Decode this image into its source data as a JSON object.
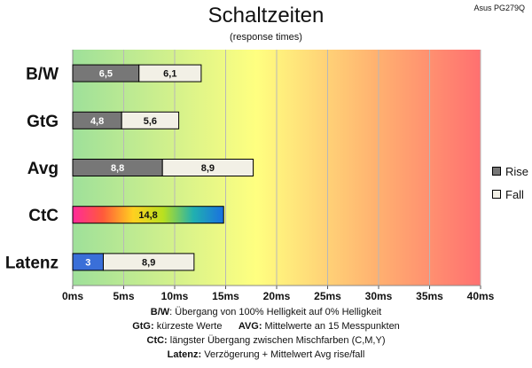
{
  "title": "Schaltzeiten",
  "subtitle": "(response times)",
  "corner_label": "Asus PG279Q",
  "legend": [
    {
      "label": "Rise",
      "color": "#777777"
    },
    {
      "label": "Fall",
      "color": "#f2f0e6"
    }
  ],
  "notes": [
    {
      "key": "B/W",
      "text": ":  Übergang von 100% Helligkeit auf 0% Helligkeit"
    },
    {
      "key": "GtG:",
      "text": " kürzeste  Werte",
      "key2": "AVG:",
      "text2": " Mittelwerte  an 15 Messpunkten"
    },
    {
      "key": "CtC:",
      "text": " längster Übergang  zwischen Mischfarben  (C,M,Y)"
    },
    {
      "key": "Latenz:",
      "text": " Verzögerung  + Mittelwert  Avg rise/fall"
    }
  ],
  "chart_data": {
    "type": "bar",
    "orientation": "horizontal",
    "stacked": true,
    "title": "Schaltzeiten",
    "subtitle": "(response times)",
    "categories": [
      "B/W",
      "GtG",
      "Avg",
      "CtC",
      "Latenz"
    ],
    "series": [
      {
        "name": "Rise",
        "values": [
          6.5,
          4.8,
          8.8,
          14.8,
          3
        ],
        "labels": [
          "6,5",
          "4,8",
          "8,8",
          "14,8",
          "3"
        ],
        "colors": [
          "#777777",
          "#777777",
          "#777777",
          "gradient",
          "#3a6fd8"
        ]
      },
      {
        "name": "Fall",
        "values": [
          6.1,
          5.6,
          8.9,
          0,
          8.9
        ],
        "labels": [
          "6,1",
          "5,6",
          "8,9",
          "",
          "8,9"
        ],
        "colors": [
          "#f2f0e6",
          "#f2f0e6",
          "#f2f0e6",
          "#f2f0e6",
          "#f2f0e6"
        ]
      }
    ],
    "xlim": [
      0,
      40
    ],
    "xticks": [
      0,
      5,
      10,
      15,
      20,
      25,
      30,
      35,
      40
    ],
    "xtick_labels": [
      "0ms",
      "5ms",
      "10ms",
      "15ms",
      "20ms",
      "25ms",
      "30ms",
      "35ms",
      "40ms"
    ],
    "background_gradient": [
      "#9ee09a",
      "#ffff80",
      "#ffb070",
      "#ff7070"
    ],
    "grid": true,
    "legend_position": "right"
  }
}
